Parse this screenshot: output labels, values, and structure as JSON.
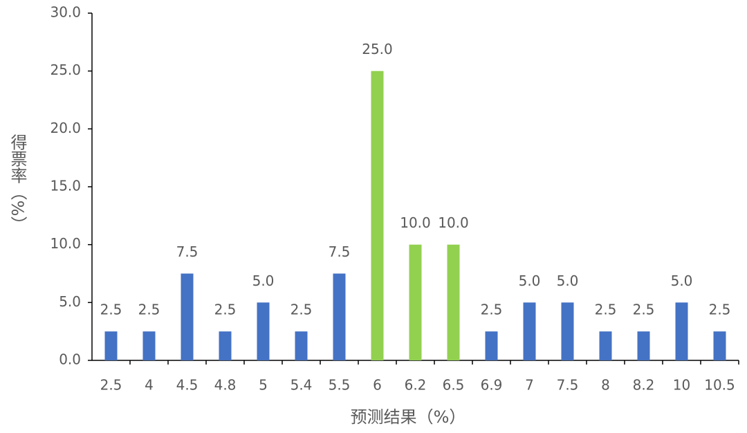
{
  "chart_data": {
    "type": "bar",
    "x_label": "预测结果（%）",
    "y_label": "得票率（%）",
    "categories": [
      "2.5",
      "4",
      "4.5",
      "4.8",
      "5",
      "5.4",
      "5.5",
      "6",
      "6.2",
      "6.5",
      "6.9",
      "7",
      "7.5",
      "8",
      "8.2",
      "10",
      "10.5"
    ],
    "values": [
      2.5,
      2.5,
      7.5,
      2.5,
      5,
      2.5,
      7.5,
      25,
      10,
      10,
      2.5,
      5,
      5,
      2.5,
      2.5,
      5,
      2.5
    ],
    "value_labels": [
      "2.5",
      "2.5",
      "7.5",
      "2.5",
      "5.0",
      "2.5",
      "7.5",
      "25.0",
      "10.0",
      "10.0",
      "2.5",
      "5.0",
      "5.0",
      "2.5",
      "2.5",
      "5.0",
      "2.5"
    ],
    "colors": [
      "#4472c4",
      "#4472c4",
      "#4472c4",
      "#4472c4",
      "#4472c4",
      "#4472c4",
      "#4472c4",
      "#92d050",
      "#92d050",
      "#92d050",
      "#4472c4",
      "#4472c4",
      "#4472c4",
      "#4472c4",
      "#4472c4",
      "#4472c4",
      "#4472c4"
    ],
    "ylim": [
      0,
      30
    ],
    "yticks": [
      {
        "value": 0,
        "label": "0.0"
      },
      {
        "value": 5,
        "label": "5.0"
      },
      {
        "value": 10,
        "label": "10.0"
      },
      {
        "value": 15,
        "label": "15.0"
      },
      {
        "value": 20,
        "label": "20.0"
      },
      {
        "value": 25,
        "label": "25.0"
      },
      {
        "value": 30,
        "label": "30.0"
      }
    ],
    "grid": false
  }
}
